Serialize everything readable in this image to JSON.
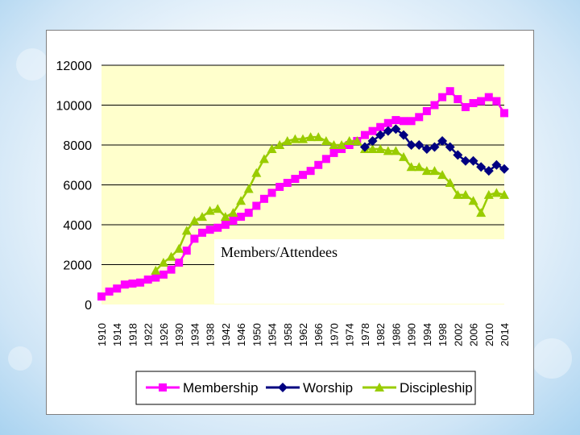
{
  "overlay_label": "Members/Attendees",
  "colors": {
    "membership": "#ff00ff",
    "worship": "#000080",
    "discipleship": "#99cc00",
    "plot_bg": "#ffffcc",
    "gridline": "#000000"
  },
  "chart_data": {
    "type": "line",
    "title": "",
    "xlabel": "",
    "ylabel": "",
    "ylim": [
      0,
      12000
    ],
    "y_ticks": [
      0,
      2000,
      4000,
      6000,
      8000,
      10000,
      12000
    ],
    "x_range": [
      1910,
      2014
    ],
    "x_ticks": [
      "1910",
      "1914",
      "1918",
      "1922",
      "1926",
      "1930",
      "1934",
      "1938",
      "1942",
      "1946",
      "1950",
      "1954",
      "1958",
      "1962",
      "1966",
      "1970",
      "1974",
      "1978",
      "1982",
      "1986",
      "1990",
      "1994",
      "1998",
      "2002",
      "2006",
      "2010",
      "2014"
    ],
    "grid": "horizontal",
    "legend_position": "bottom",
    "series": [
      {
        "name": "Membership",
        "marker": "square",
        "color": "#ff00ff",
        "points": [
          [
            1910,
            400
          ],
          [
            1912,
            650
          ],
          [
            1914,
            800
          ],
          [
            1916,
            1000
          ],
          [
            1918,
            1050
          ],
          [
            1920,
            1100
          ],
          [
            1922,
            1250
          ],
          [
            1924,
            1350
          ],
          [
            1926,
            1500
          ],
          [
            1928,
            1750
          ],
          [
            1930,
            2100
          ],
          [
            1932,
            2700
          ],
          [
            1934,
            3300
          ],
          [
            1936,
            3600
          ],
          [
            1938,
            3750
          ],
          [
            1940,
            3850
          ],
          [
            1942,
            4000
          ],
          [
            1944,
            4200
          ],
          [
            1946,
            4400
          ],
          [
            1948,
            4600
          ],
          [
            1950,
            4950
          ],
          [
            1952,
            5300
          ],
          [
            1954,
            5600
          ],
          [
            1956,
            5900
          ],
          [
            1958,
            6100
          ],
          [
            1960,
            6300
          ],
          [
            1962,
            6500
          ],
          [
            1964,
            6700
          ],
          [
            1966,
            7000
          ],
          [
            1968,
            7300
          ],
          [
            1970,
            7600
          ],
          [
            1972,
            7800
          ],
          [
            1974,
            8000
          ],
          [
            1976,
            8200
          ],
          [
            1978,
            8500
          ],
          [
            1980,
            8700
          ],
          [
            1982,
            8900
          ],
          [
            1984,
            9100
          ],
          [
            1986,
            9250
          ],
          [
            1988,
            9200
          ],
          [
            1990,
            9200
          ],
          [
            1992,
            9400
          ],
          [
            1994,
            9700
          ],
          [
            1996,
            10000
          ],
          [
            1998,
            10400
          ],
          [
            2000,
            10700
          ],
          [
            2002,
            10300
          ],
          [
            2004,
            9900
          ],
          [
            2006,
            10100
          ],
          [
            2008,
            10200
          ],
          [
            2010,
            10400
          ],
          [
            2012,
            10200
          ],
          [
            2014,
            9600
          ]
        ]
      },
      {
        "name": "Worship",
        "marker": "diamond",
        "color": "#000080",
        "points": [
          [
            1978,
            7900
          ],
          [
            1980,
            8200
          ],
          [
            1982,
            8500
          ],
          [
            1984,
            8700
          ],
          [
            1986,
            8800
          ],
          [
            1988,
            8500
          ],
          [
            1990,
            8000
          ],
          [
            1992,
            8000
          ],
          [
            1994,
            7800
          ],
          [
            1996,
            7900
          ],
          [
            1998,
            8200
          ],
          [
            2000,
            7900
          ],
          [
            2002,
            7500
          ],
          [
            2004,
            7200
          ],
          [
            2006,
            7200
          ],
          [
            2008,
            6900
          ],
          [
            2010,
            6700
          ],
          [
            2012,
            7000
          ],
          [
            2014,
            6800
          ]
        ]
      },
      {
        "name": "Discipleship",
        "marker": "triangle",
        "color": "#99cc00",
        "points": [
          [
            1924,
            1700
          ],
          [
            1926,
            2100
          ],
          [
            1928,
            2400
          ],
          [
            1930,
            2800
          ],
          [
            1932,
            3700
          ],
          [
            1934,
            4200
          ],
          [
            1936,
            4400
          ],
          [
            1938,
            4700
          ],
          [
            1940,
            4800
          ],
          [
            1942,
            4400
          ],
          [
            1944,
            4600
          ],
          [
            1946,
            5200
          ],
          [
            1948,
            5800
          ],
          [
            1950,
            6600
          ],
          [
            1952,
            7300
          ],
          [
            1954,
            7800
          ],
          [
            1956,
            8000
          ],
          [
            1958,
            8200
          ],
          [
            1960,
            8300
          ],
          [
            1962,
            8300
          ],
          [
            1964,
            8400
          ],
          [
            1966,
            8400
          ],
          [
            1968,
            8200
          ],
          [
            1970,
            8000
          ],
          [
            1972,
            8000
          ],
          [
            1974,
            8200
          ],
          [
            1976,
            8200
          ],
          [
            1978,
            7800
          ],
          [
            1980,
            7800
          ],
          [
            1982,
            7800
          ],
          [
            1984,
            7700
          ],
          [
            1986,
            7700
          ],
          [
            1988,
            7400
          ],
          [
            1990,
            6900
          ],
          [
            1992,
            6900
          ],
          [
            1994,
            6700
          ],
          [
            1996,
            6700
          ],
          [
            1998,
            6500
          ],
          [
            2000,
            6100
          ],
          [
            2002,
            5500
          ],
          [
            2004,
            5500
          ],
          [
            2006,
            5200
          ],
          [
            2008,
            4600
          ],
          [
            2010,
            5500
          ],
          [
            2012,
            5600
          ],
          [
            2014,
            5500
          ]
        ]
      }
    ]
  }
}
